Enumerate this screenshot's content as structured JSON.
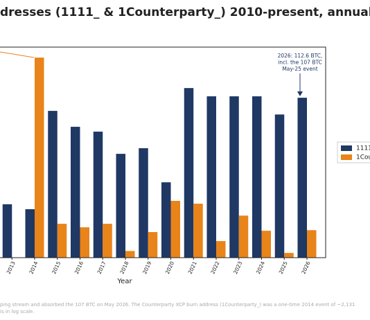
{
  "chart_data": {
    "type": "bar",
    "title": "dresses (1111_ & 1Counterparty_) 2010-present, annual",
    "xlabel": "Year",
    "categories": [
      "2013",
      "2014",
      "2015",
      "2016",
      "2017",
      "2018",
      "2019",
      "2020",
      "2021",
      "2022",
      "2023",
      "2024",
      "2025",
      "2026"
    ],
    "series": [
      {
        "name": "1111",
        "color": "#1f3864",
        "values": [
          0.046,
          0.032,
          43,
          13.4,
          9.4,
          1.85,
          2.8,
          0.23,
          229,
          125,
          125,
          125,
          33,
          112.6
        ]
      },
      {
        "name": "1Cou",
        "color": "#e8841a",
        "values": [
          null,
          2131,
          0.011,
          0.0085,
          0.011,
          0.0015,
          0.006,
          0.059,
          0.048,
          0.0031,
          0.02,
          0.0066,
          0.0013,
          0.0069
        ]
      }
    ],
    "ylim": [
      0.00092,
      4600
    ],
    "log_scale": true,
    "annotations": [
      {
        "lines": [
          "2026: 112.6 BTC,",
          "incl. the 107 BTC",
          "May-25 event"
        ]
      }
    ],
    "footnote": [
      "ping stream and absorbed the 107 BTC on May 2026. The Counterparty XCP burn address (1Counterparty_) was a one-time 2014 event of ~2,131",
      "is in log scale."
    ]
  }
}
